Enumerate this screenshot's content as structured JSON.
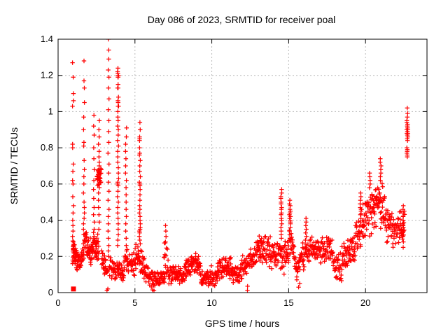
{
  "chart_data": {
    "type": "scatter",
    "title": "Day 086 of 2023, SRMTID for receiver poal",
    "xlabel": "GPS time / hours",
    "ylabel": "SRMTID / TECUs",
    "xlim": [
      0,
      24
    ],
    "ylim": [
      0,
      1.4
    ],
    "xticks": [
      {
        "v": 0,
        "label": "0"
      },
      {
        "v": 5,
        "label": "5"
      },
      {
        "v": 10,
        "label": "10"
      },
      {
        "v": 15,
        "label": "15"
      },
      {
        "v": 20,
        "label": "20"
      }
    ],
    "yticks": [
      {
        "v": 0,
        "label": "0"
      },
      {
        "v": 0.2,
        "label": "0.2"
      },
      {
        "v": 0.4,
        "label": "0.4"
      },
      {
        "v": 0.6,
        "label": "0.6"
      },
      {
        "v": 0.8,
        "label": "0.8"
      },
      {
        "v": 1.0,
        "label": "1"
      },
      {
        "v": 1.2,
        "label": "1.2"
      },
      {
        "v": 1.4,
        "label": "1.4"
      }
    ],
    "grid": true,
    "legend": "none",
    "marker": "plus",
    "marker_color": "#ff0000",
    "grid_color": "#b9b9b9",
    "border_color": "#000000",
    "columns": [
      {
        "x": 0.97,
        "ys": [
          1.27,
          1.19,
          1.1,
          1.06,
          1.03,
          0.82,
          0.8,
          0.71,
          0.67,
          0.62,
          0.6,
          0.53,
          0.48,
          0.44,
          0.4,
          0.37,
          0.34,
          0.31,
          0.28,
          0.26,
          0.24,
          0.22,
          0.2,
          0.18,
          0.17,
          0.16
        ]
      },
      {
        "x": 1.68,
        "ys": [
          1.28,
          1.17,
          1.13,
          1.05,
          0.97,
          0.9,
          0.83,
          0.81,
          0.73,
          0.68,
          0.64,
          0.6,
          0.55,
          0.5,
          0.47,
          0.44,
          0.41,
          0.38,
          0.35,
          0.32,
          0.29,
          0.27,
          0.25,
          0.23,
          0.21,
          0.19
        ]
      },
      {
        "x": 2.33,
        "ys": [
          0.98,
          0.92,
          0.87,
          0.8,
          0.74,
          0.68,
          0.62,
          0.57,
          0.52,
          0.47,
          0.43,
          0.39,
          0.35,
          0.31,
          0.28
        ]
      },
      {
        "x": 2.65,
        "ys": [
          0.95,
          0.9,
          0.86,
          0.82,
          0.78,
          0.75,
          0.72,
          0.7,
          0.68,
          0.67,
          0.66,
          0.65,
          0.64,
          0.63,
          0.62,
          0.61,
          0.6,
          0.58,
          0.55,
          0.51,
          0.47,
          0.43,
          0.39,
          0.35
        ]
      },
      {
        "x": 3.28,
        "ys": [
          1.4,
          1.34,
          1.29,
          1.23,
          1.19,
          1.13,
          1.07,
          1.01,
          0.95,
          0.89,
          0.83,
          0.77,
          0.71,
          0.66,
          0.61,
          0.56,
          0.51,
          0.46,
          0.42,
          0.38,
          0.34,
          0.3,
          0.26,
          0.23,
          0.2
        ]
      },
      {
        "x": 3.9,
        "ys": [
          1.24,
          1.22,
          1.21,
          1.2,
          1.2,
          1.19,
          1.19,
          1.15,
          1.13,
          1.13,
          1.08,
          1.06,
          1.05,
          1.03,
          1.03,
          1.0,
          0.97,
          0.95,
          0.92,
          0.9,
          0.87,
          0.84,
          0.81,
          0.78,
          0.75,
          0.72,
          0.69,
          0.66,
          0.63,
          0.61,
          0.6,
          0.6,
          0.59,
          0.56,
          0.53,
          0.5,
          0.47,
          0.44,
          0.41,
          0.38,
          0.35,
          0.32,
          0.29,
          0.26
        ]
      },
      {
        "x": 4.42,
        "ys": [
          0.91,
          0.86,
          0.82,
          0.78,
          0.74,
          0.7,
          0.66,
          0.62,
          0.58,
          0.54,
          0.5,
          0.46,
          0.42,
          0.38,
          0.34,
          0.3,
          0.26,
          0.23
        ]
      },
      {
        "x": 5.32,
        "ys": [
          0.94,
          0.9,
          0.86,
          0.85,
          0.84,
          0.8,
          0.77,
          0.76,
          0.73,
          0.7,
          0.67,
          0.64,
          0.61,
          0.6,
          0.59,
          0.57,
          0.54,
          0.51,
          0.48,
          0.46,
          0.44,
          0.42,
          0.4,
          0.38,
          0.36,
          0.35,
          0.34,
          0.33,
          0.31,
          0.29,
          0.27
        ]
      },
      {
        "x": 7.02,
        "ys": [
          0.37,
          0.34,
          0.31,
          0.28
        ]
      },
      {
        "x": 14.52,
        "ys": [
          0.57,
          0.55,
          0.53,
          0.52,
          0.5,
          0.49,
          0.47,
          0.46,
          0.44,
          0.43,
          0.41,
          0.4,
          0.38,
          0.36,
          0.34,
          0.32,
          0.3
        ]
      },
      {
        "x": 15.08,
        "ys": [
          0.51,
          0.49,
          0.48,
          0.46,
          0.45,
          0.44,
          0.43,
          0.42,
          0.41,
          0.4,
          0.39,
          0.38,
          0.36,
          0.34,
          0.32
        ]
      },
      {
        "x": 16.12,
        "ys": [
          0.41,
          0.39,
          0.37,
          0.35,
          0.33,
          0.31,
          0.29
        ]
      },
      {
        "x": 19.68,
        "ys": [
          0.55,
          0.53,
          0.51,
          0.49,
          0.47,
          0.45,
          0.43,
          0.41,
          0.39,
          0.37
        ]
      },
      {
        "x": 20.28,
        "ys": [
          0.66,
          0.64,
          0.62,
          0.6
        ]
      },
      {
        "x": 20.98,
        "ys": [
          0.74,
          0.72,
          0.7,
          0.68,
          0.66,
          0.64,
          0.62
        ]
      },
      {
        "x": 22.45,
        "ys": [
          0.48,
          0.46,
          0.44,
          0.42,
          0.4,
          0.38,
          0.36,
          0.34,
          0.31,
          0.28,
          0.25
        ]
      },
      {
        "x": 22.72,
        "ys": [
          1.02,
          0.99,
          0.97,
          0.95,
          0.94,
          0.93,
          0.92,
          0.91,
          0.9,
          0.9,
          0.89,
          0.89,
          0.88,
          0.88,
          0.87,
          0.87,
          0.86,
          0.85,
          0.84,
          0.8,
          0.79,
          0.78,
          0.77,
          0.76,
          0.75
        ]
      }
    ],
    "bands": [
      [
        0.95,
        1.25,
        35,
        0.26,
        0.17,
        0.07
      ],
      [
        1.25,
        1.62,
        28,
        0.17,
        0.21,
        0.06
      ],
      [
        1.72,
        2.2,
        45,
        0.3,
        0.21,
        0.08
      ],
      [
        2.2,
        2.65,
        40,
        0.28,
        0.24,
        0.08
      ],
      [
        2.52,
        2.82,
        25,
        0.64,
        0.64,
        0.06
      ],
      [
        2.82,
        3.22,
        32,
        0.18,
        0.11,
        0.07
      ],
      [
        3.32,
        3.78,
        30,
        0.15,
        0.12,
        0.07
      ],
      [
        3.82,
        4.28,
        30,
        0.13,
        0.11,
        0.06
      ],
      [
        4.28,
        5.0,
        45,
        0.17,
        0.15,
        0.08
      ],
      [
        5.0,
        5.62,
        40,
        0.19,
        0.15,
        0.09
      ],
      [
        5.62,
        6.12,
        28,
        0.12,
        0.08,
        0.06
      ],
      [
        6.12,
        6.95,
        50,
        0.08,
        0.08,
        0.05
      ],
      [
        6.88,
        7.18,
        16,
        0.2,
        0.16,
        0.11
      ],
      [
        7.18,
        8.3,
        70,
        0.1,
        0.1,
        0.06
      ],
      [
        8.3,
        8.85,
        40,
        0.13,
        0.17,
        0.07
      ],
      [
        8.85,
        9.3,
        32,
        0.17,
        0.12,
        0.07
      ],
      [
        9.3,
        9.95,
        42,
        0.08,
        0.08,
        0.05
      ],
      [
        9.95,
        10.35,
        24,
        0.09,
        0.07,
        0.07
      ],
      [
        10.35,
        11.25,
        58,
        0.14,
        0.13,
        0.07
      ],
      [
        11.25,
        11.85,
        38,
        0.1,
        0.1,
        0.06
      ],
      [
        11.85,
        12.35,
        30,
        0.13,
        0.16,
        0.08
      ],
      [
        12.35,
        12.92,
        34,
        0.18,
        0.22,
        0.09
      ],
      [
        12.92,
        13.5,
        38,
        0.25,
        0.23,
        0.1
      ],
      [
        13.5,
        14.45,
        58,
        0.22,
        0.21,
        0.1
      ],
      [
        14.45,
        15.0,
        34,
        0.18,
        0.21,
        0.1
      ],
      [
        15.0,
        15.38,
        24,
        0.3,
        0.26,
        0.11
      ],
      [
        15.38,
        15.66,
        15,
        0.13,
        0.12,
        0.09
      ],
      [
        15.66,
        16.1,
        28,
        0.18,
        0.21,
        0.09
      ],
      [
        16.1,
        17.85,
        108,
        0.24,
        0.24,
        0.09
      ],
      [
        17.85,
        18.45,
        34,
        0.16,
        0.14,
        0.09
      ],
      [
        18.45,
        19.35,
        55,
        0.2,
        0.24,
        0.1
      ],
      [
        19.35,
        19.95,
        40,
        0.3,
        0.38,
        0.13
      ],
      [
        19.95,
        20.65,
        48,
        0.44,
        0.46,
        0.15
      ],
      [
        20.65,
        21.25,
        44,
        0.5,
        0.47,
        0.15
      ],
      [
        21.25,
        21.75,
        34,
        0.4,
        0.36,
        0.12
      ],
      [
        21.75,
        22.55,
        52,
        0.33,
        0.37,
        0.11
      ]
    ],
    "zero_points": [
      [
        3.18,
        0.012
      ],
      [
        3.24,
        0.02
      ],
      [
        6.15,
        0.015
      ],
      [
        6.24,
        0.01
      ],
      [
        12.32,
        0.012
      ],
      [
        12.33,
        0.035
      ],
      [
        15.65,
        0.03
      ],
      [
        15.72,
        0.05
      ]
    ],
    "square_points": [
      [
        1.0,
        0.02
      ]
    ]
  }
}
